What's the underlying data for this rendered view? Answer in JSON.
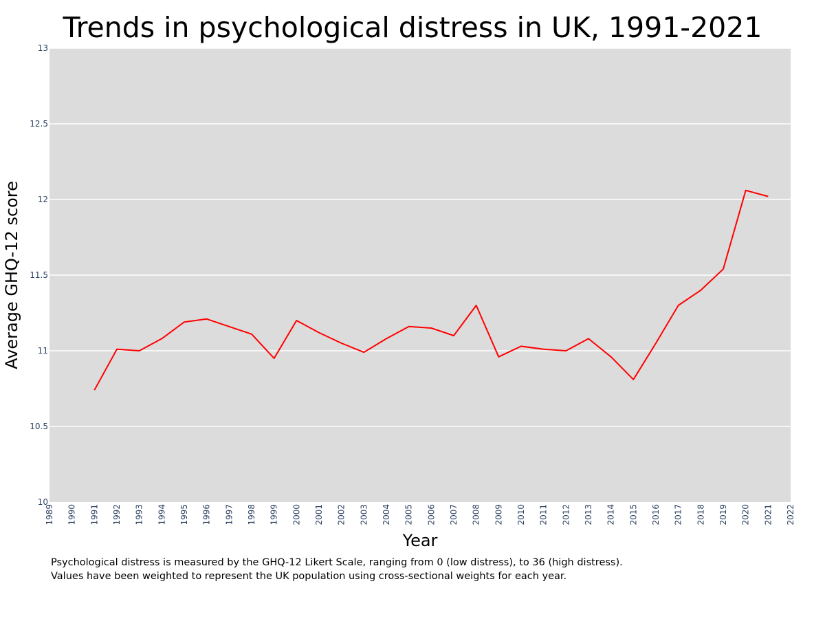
{
  "chart_data": {
    "type": "line",
    "title": "Trends in psychological distress in UK, 1991-2021",
    "xlabel": "Year",
    "ylabel": "Average GHQ-12 score",
    "xlim": [
      1989,
      2022
    ],
    "ylim": [
      10,
      13
    ],
    "x_ticks": [
      1989,
      1990,
      1991,
      1992,
      1993,
      1994,
      1995,
      1996,
      1997,
      1998,
      1999,
      2000,
      2001,
      2002,
      2003,
      2004,
      2005,
      2006,
      2007,
      2008,
      2009,
      2010,
      2011,
      2012,
      2013,
      2014,
      2015,
      2016,
      2017,
      2018,
      2019,
      2020,
      2021,
      2022
    ],
    "y_ticks": [
      10,
      10.5,
      11,
      11.5,
      12,
      12.5,
      13
    ],
    "y_tick_labels": [
      "10",
      "10.5",
      "11",
      "11.5",
      "12",
      "12.5",
      "13"
    ],
    "grid": true,
    "plot_background": "#dcdcdc",
    "line_color": "#ff0000",
    "series": [
      {
        "x": [
          1991,
          1992,
          1993,
          1994,
          1995,
          1996,
          1997,
          1998,
          1999,
          2000,
          2001,
          2002,
          2003,
          2004,
          2005,
          2006,
          2007,
          2008,
          2009,
          2010,
          2011,
          2012,
          2013,
          2014,
          2015,
          2016,
          2017,
          2018,
          2019,
          2020,
          2021
        ],
        "values": [
          10.74,
          11.01,
          11.0,
          11.08,
          11.19,
          11.21,
          11.16,
          11.11,
          10.95,
          11.2,
          11.12,
          11.05,
          10.99,
          11.08,
          11.16,
          11.15,
          11.1,
          11.3,
          10.96,
          11.03,
          11.01,
          11.0,
          11.08,
          10.96,
          10.81,
          11.05,
          11.3,
          11.4,
          11.54,
          12.06,
          12.02
        ]
      }
    ]
  },
  "notes": [
    "Psychological distress is measured by the GHQ-12 Likert Scale, ranging from 0 (low distress), to 36 (high distress).",
    "Values have been weighted to represent the UK population using cross-sectional weights for each year."
  ]
}
